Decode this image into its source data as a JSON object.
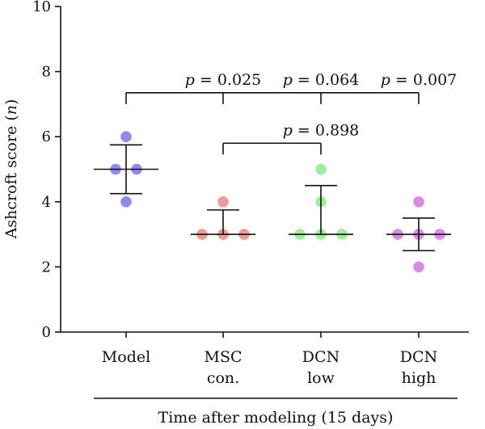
{
  "chart_data": {
    "type": "scatter",
    "ylabel": "Ashcroft score (",
    "ylabel_var": "n",
    "ylabel_close": ")",
    "xlabel": "Time after modeling (15 days)",
    "ylim": [
      0,
      10
    ],
    "yticks": [
      0,
      2,
      4,
      6,
      8,
      10
    ],
    "grid": false,
    "categories": [
      {
        "lines": [
          "Model"
        ],
        "color": "#8c8cf0",
        "values": [
          6,
          5,
          5,
          4
        ],
        "median": 5,
        "q1": 4.25,
        "q3": 5.75
      },
      {
        "lines": [
          "MSC",
          "con."
        ],
        "color": "#f29a96",
        "values": [
          4,
          3,
          3,
          3
        ],
        "median": 3,
        "q1": 3,
        "q3": 3.75
      },
      {
        "lines": [
          "DCN",
          "low"
        ],
        "color": "#9ef09a",
        "values": [
          5,
          4,
          3,
          3,
          3
        ],
        "median": 3,
        "q1": 3,
        "q3": 4.5
      },
      {
        "lines": [
          "DCN",
          "high"
        ],
        "color": "#d98ce6",
        "values": [
          4,
          3,
          3,
          3,
          2
        ],
        "median": 3,
        "q1": 2.5,
        "q3": 3.5
      }
    ],
    "annotations": [
      {
        "from": 0,
        "to": 1,
        "level": 7.35,
        "p": "= 0.025"
      },
      {
        "from": 0,
        "to": 2,
        "level": 7.35,
        "p": "= 0.064"
      },
      {
        "from": 0,
        "to": 3,
        "level": 7.35,
        "p": "= 0.007"
      },
      {
        "from": 1,
        "to": 2,
        "level": 5.8,
        "p": "= 0.898"
      }
    ],
    "p_symbol": "p"
  }
}
